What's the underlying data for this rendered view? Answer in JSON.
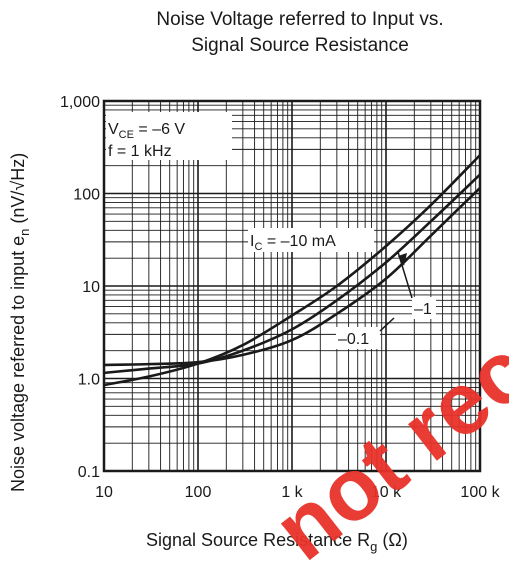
{
  "chart_data": {
    "type": "line",
    "title_line1": "Noise Voltage referred to Input vs.",
    "title_line2": "Signal Source Resistance",
    "xlabel_main": "Signal Source Resistance  R",
    "xlabel_sub": "g",
    "xlabel_unit": "(Ω)",
    "ylabel_main": "Noise voltage referred to input  e",
    "ylabel_sub": "n",
    "ylabel_unit": "(nV/√Hz)",
    "x_scale": "log",
    "y_scale": "log",
    "xlim": [
      10,
      100000
    ],
    "ylim": [
      0.1,
      1000
    ],
    "x_tick_labels": [
      "10",
      "100",
      "1 k",
      "10 k",
      "100 k"
    ],
    "y_tick_labels": [
      "0.1",
      "1.0",
      "10",
      "100",
      "1,000"
    ],
    "grid": true,
    "conditions": {
      "vce_prefix": "V",
      "vce_sub": "CE",
      "vce_value": " = –6 V",
      "freq": "f = 1 kHz"
    },
    "series": [
      {
        "name": "I_C = –10 mA",
        "label_prefix": "I",
        "label_sub": "C",
        "label_value": " = –10 mA",
        "x": [
          10,
          30,
          100,
          300,
          1000,
          3000,
          10000,
          30000,
          100000
        ],
        "y": [
          0.85,
          1.05,
          1.45,
          2.3,
          4.8,
          10,
          27,
          75,
          260
        ]
      },
      {
        "name": "–1",
        "label": "–1",
        "x": [
          10,
          30,
          100,
          300,
          1000,
          3000,
          10000,
          30000,
          100000
        ],
        "y": [
          1.15,
          1.28,
          1.45,
          2.0,
          3.4,
          7,
          18,
          50,
          160
        ]
      },
      {
        "name": "–0.1",
        "label": "–0.1",
        "x": [
          10,
          30,
          100,
          300,
          1000,
          3000,
          10000,
          30000,
          100000
        ],
        "y": [
          1.4,
          1.43,
          1.5,
          1.8,
          2.6,
          5,
          12,
          35,
          115
        ]
      }
    ]
  },
  "watermark": "not recommended"
}
